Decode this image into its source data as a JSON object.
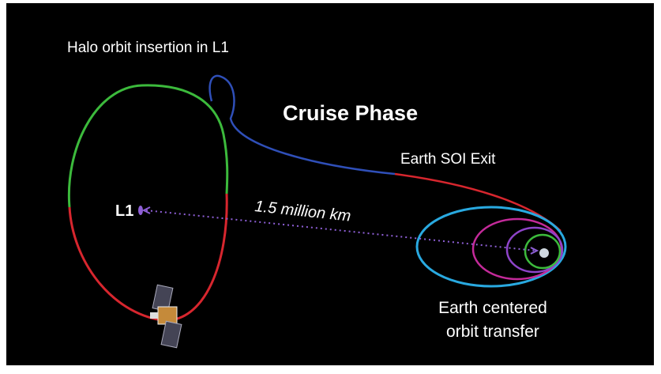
{
  "title": "Cruise Phase",
  "labels": {
    "halo": "Halo orbit insertion in L1",
    "soi": "Earth SOI Exit",
    "l1": "L1",
    "distance": "1.5 million km",
    "earth_line1": "Earth centered",
    "earth_line2": "orbit transfer"
  }
}
